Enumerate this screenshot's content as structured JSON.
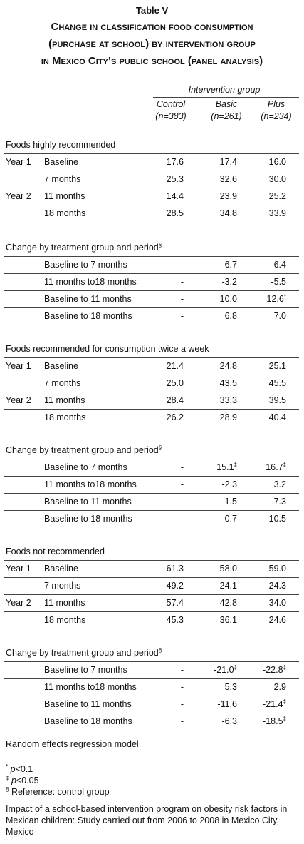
{
  "title": "Table V",
  "subtitle_lines": [
    "Change in classification food consumption",
    "(purchase at school) by intervention group",
    "in Mexico City’s public school (panel analysis)"
  ],
  "header": {
    "group": "Intervention group",
    "columns": [
      {
        "name": "Control",
        "n": "(n=383)"
      },
      {
        "name": "Basic",
        "n": "(n=261)"
      },
      {
        "name": "Plus",
        "n": "(n=234)"
      }
    ]
  },
  "sections": [
    {
      "title": "Foods highly recommended",
      "rows": [
        {
          "year": "Year 1",
          "label": "Baseline",
          "cells": [
            "17.6",
            "17.4",
            "16.0"
          ]
        },
        {
          "label": "7 months",
          "cells": [
            "25.3",
            "32.6",
            "30.0"
          ]
        },
        {
          "year": "Year 2",
          "label": "11 months",
          "cells": [
            "14.4",
            "23.9",
            "25.2"
          ]
        },
        {
          "label": "18 months",
          "cells": [
            "28.5",
            "34.8",
            "33.9"
          ]
        }
      ]
    },
    {
      "title": "Change by treatment group and period",
      "title_mark": "§",
      "rows": [
        {
          "label": "Baseline to 7 months",
          "cells": [
            "-",
            "6.7",
            "6.4"
          ]
        },
        {
          "label": "11 months to18 months",
          "cells": [
            "-",
            "-3.2",
            "-5.5"
          ]
        },
        {
          "label": "Baseline to 11 months",
          "cells": [
            "-",
            "10.0",
            {
              "value": "12.6",
              "mark": "*"
            }
          ]
        },
        {
          "label": "Baseline to 18 months",
          "cells": [
            "-",
            "6.8",
            "7.0"
          ]
        }
      ]
    },
    {
      "title": "Foods recommended for consumption twice a week",
      "rows": [
        {
          "year": "Year 1",
          "label": "Baseline",
          "cells": [
            "21.4",
            "24.8",
            "25.1"
          ]
        },
        {
          "label": "7 months",
          "cells": [
            "25.0",
            "43.5",
            "45.5"
          ]
        },
        {
          "year": "Year 2",
          "label": "11 months",
          "cells": [
            "28.4",
            "33.3",
            "39.5"
          ]
        },
        {
          "label": "18 months",
          "cells": [
            "26.2",
            "28.9",
            "40.4"
          ]
        }
      ]
    },
    {
      "title": "Change by treatment group and period",
      "title_mark": "§",
      "rows": [
        {
          "label": "Baseline to 7 months",
          "cells": [
            "-",
            {
              "value": "15.1",
              "mark": "‡"
            },
            {
              "value": "16.7",
              "mark": "‡"
            }
          ]
        },
        {
          "label": "11 months to18 months",
          "cells": [
            "-",
            "-2.3",
            "3.2"
          ]
        },
        {
          "label": "Baseline to 11 months",
          "cells": [
            "-",
            "1.5",
            "7.3"
          ]
        },
        {
          "label": "Baseline to 18 months",
          "cells": [
            "-",
            "-0.7",
            "10.5"
          ]
        }
      ]
    },
    {
      "title": "Foods not recommended",
      "rows": [
        {
          "year": "Year 1",
          "label": "Baseline",
          "cells": [
            "61.3",
            "58.0",
            "59.0"
          ]
        },
        {
          "label": "7 months",
          "cells": [
            "49.2",
            "24.1",
            "24.3"
          ]
        },
        {
          "year": "Year 2",
          "label": "11 months",
          "cells": [
            "57.4",
            "42.8",
            "34.0"
          ]
        },
        {
          "label": "18 months",
          "cells": [
            "45.3",
            "36.1",
            "24.6"
          ]
        }
      ]
    },
    {
      "title": "Change by treatment group and period",
      "title_mark": "§",
      "rows": [
        {
          "label": "Baseline to 7 months",
          "cells": [
            "-",
            {
              "value": "-21.0",
              "mark": "‡"
            },
            {
              "value": "-22.8",
              "mark": "‡"
            }
          ]
        },
        {
          "label": "11 months to18 months",
          "cells": [
            "-",
            "5.3",
            "2.9"
          ]
        },
        {
          "label": "Baseline to 11 months",
          "cells": [
            "-",
            "-11.6",
            {
              "value": "-21.4",
              "mark": "‡"
            }
          ]
        },
        {
          "label": "Baseline to 18 months",
          "cells": [
            "-",
            "-6.3",
            {
              "value": "-18.5",
              "mark": "‡"
            }
          ]
        }
      ]
    }
  ],
  "model_note": "Random effects regression model",
  "footnotes": [
    {
      "symbol": "*",
      "var": "p",
      "text": "<0.1"
    },
    {
      "symbol": "‡",
      "var": "p",
      "text": "<0.05"
    },
    {
      "symbol": "§",
      "text": "Reference: control group"
    }
  ],
  "source": "Impact of a school-based intervention program on obesity risk factors in Mexican children: Study carried out from 2006 to 2008 in Mexico City, Mexico"
}
